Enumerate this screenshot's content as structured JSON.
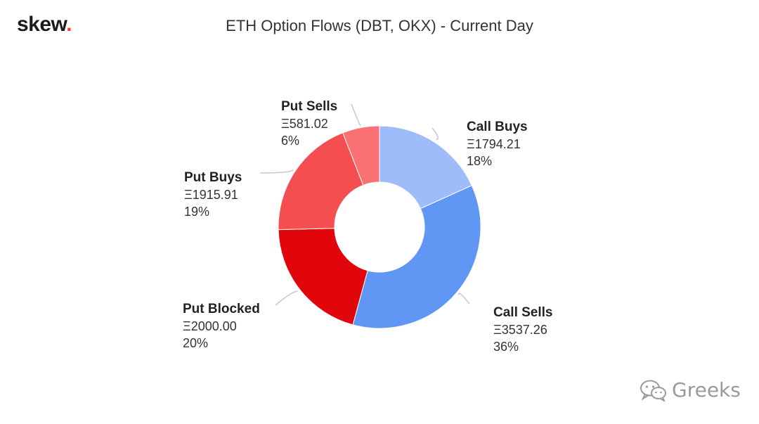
{
  "brand": {
    "name": "skew",
    "dot": "."
  },
  "watermark": {
    "text": "Greeks",
    "icon": "wechat-icon"
  },
  "chart_data": {
    "type": "pie",
    "donut": true,
    "title": "ETH Option Flows (DBT, OKX) - Current Day",
    "currency_symbol": "Ξ",
    "slices": [
      {
        "name": "Call Buys",
        "value": 1794.21,
        "value_label": "Ξ1794.21",
        "percent_label": "18%",
        "color": "#9ebbfa"
      },
      {
        "name": "Call Sells",
        "value": 3537.26,
        "value_label": "Ξ3537.26",
        "percent_label": "36%",
        "color": "#6097f5"
      },
      {
        "name": "Put Blocked",
        "value": 2000.0,
        "value_label": "Ξ2000.00",
        "percent_label": "20%",
        "color": "#e0060b"
      },
      {
        "name": "Put Buys",
        "value": 1915.91,
        "value_label": "Ξ1915.91",
        "percent_label": "19%",
        "color": "#f54e51"
      },
      {
        "name": "Put Sells",
        "value": 581.02,
        "value_label": "Ξ581.02",
        "percent_label": "6%",
        "color": "#fa7173"
      }
    ]
  }
}
